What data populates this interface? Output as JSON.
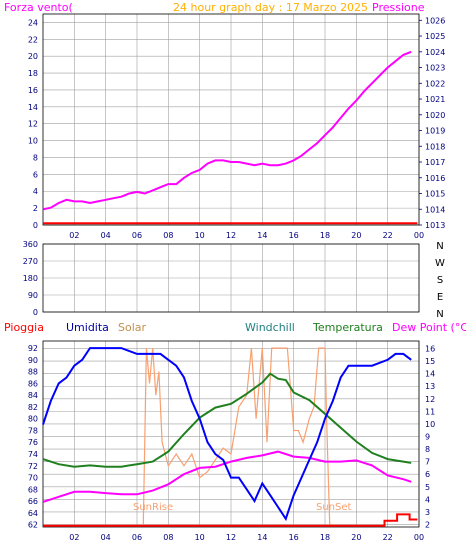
{
  "chart_data": [
    {
      "type": "line",
      "title": "24 hour graph day : 17 Marzo 2025",
      "left_axis_label": "Forza vento(",
      "right_axis_label": "Pressione",
      "x_ticks": [
        "02",
        "04",
        "06",
        "08",
        "10",
        "12",
        "14",
        "16",
        "18",
        "20",
        "22",
        "00"
      ],
      "y_left_ticks": [
        0,
        2,
        4,
        6,
        8,
        10,
        12,
        14,
        16,
        18,
        20,
        22,
        24
      ],
      "y_right_ticks": [
        1013,
        1014,
        1015,
        1016,
        1017,
        1018,
        1019,
        1020,
        1021,
        1022,
        1023,
        1024,
        1025,
        1026
      ],
      "y_left_range": [
        0,
        25
      ],
      "y_right_range": [
        1013,
        1026.4
      ],
      "grid": true,
      "colors": {
        "wind": "#ff0000",
        "pressure": "#ff00ff",
        "title": "#ffb000",
        "grid": "#a0a0a0",
        "tick": "#000080"
      },
      "series": [
        {
          "name": "Pressione",
          "axis": "right",
          "x": [
            0,
            0.5,
            1,
            1.5,
            2,
            2.5,
            3,
            3.5,
            4,
            4.5,
            5,
            5.5,
            6,
            6.5,
            7,
            7.5,
            8,
            8.5,
            9,
            9.5,
            10,
            10.5,
            11,
            11.5,
            12,
            12.5,
            13,
            13.5,
            14,
            14.5,
            15,
            15.5,
            16,
            16.5,
            17,
            17.5,
            18,
            18.5,
            19,
            19.5,
            20,
            20.5,
            21,
            21.5,
            22,
            22.5,
            23,
            23.5
          ],
          "y": [
            1014.0,
            1014.1,
            1014.4,
            1014.6,
            1014.5,
            1014.5,
            1014.4,
            1014.5,
            1014.6,
            1014.7,
            1014.8,
            1015.0,
            1015.1,
            1015.0,
            1015.2,
            1015.4,
            1015.6,
            1015.6,
            1016.0,
            1016.3,
            1016.5,
            1016.9,
            1017.1,
            1017.1,
            1017.0,
            1017.0,
            1016.9,
            1016.8,
            1016.9,
            1016.8,
            1016.8,
            1016.9,
            1017.1,
            1017.4,
            1017.8,
            1018.2,
            1018.7,
            1019.2,
            1019.8,
            1020.4,
            1020.9,
            1021.5,
            1022.0,
            1022.5,
            1023.0,
            1023.4,
            1023.8,
            1024.0
          ]
        },
        {
          "name": "Forza vento",
          "axis": "left",
          "x": [
            0,
            23.9
          ],
          "y": [
            0.2,
            0.2
          ]
        }
      ]
    },
    {
      "type": "scatter",
      "left_ticks": [
        "360",
        "270",
        "180",
        "90",
        "0"
      ],
      "right_labels": [
        "N",
        "W",
        "S",
        "E",
        "N"
      ],
      "grid": true,
      "series": []
    },
    {
      "type": "line",
      "labels": {
        "rain": "Pioggia",
        "humidity": "Umidita",
        "solar": "Solar",
        "windchill": "Windchill",
        "temperature": "Temperatura",
        "dewpoint": "Dew Point (°C)"
      },
      "colors": {
        "rain": "#ff0000",
        "humidity": "#0000ff",
        "solar": "#f8a070",
        "windchill": "#2060b0",
        "temperature": "#208020",
        "dewpoint": "#ff00ff"
      },
      "x_ticks": [
        "02",
        "04",
        "06",
        "08",
        "10",
        "12",
        "14",
        "16",
        "18",
        "20",
        "22",
        "00"
      ],
      "y_left_ticks": [
        62,
        64,
        66,
        68,
        70,
        72,
        74,
        76,
        78,
        80,
        82,
        84,
        86,
        88,
        90,
        92
      ],
      "y_right_ticks": [
        2,
        3,
        4,
        5,
        6,
        7,
        8,
        9,
        10,
        11,
        12,
        13,
        14,
        15,
        16
      ],
      "y_left_range": [
        61.6,
        93.2
      ],
      "y_right_range": [
        1.8,
        16.6
      ],
      "annotations": [
        "SunRise",
        "SunSet"
      ],
      "grid": true,
      "series": [
        {
          "name": "Umidita",
          "axis": "left",
          "x": [
            0,
            0.5,
            1,
            1.5,
            2,
            2.5,
            3,
            4,
            5,
            6,
            6.5,
            7,
            7.5,
            8,
            8.5,
            9,
            9.5,
            10,
            10.5,
            11,
            11.5,
            12,
            12.5,
            13,
            13.5,
            14,
            14.5,
            15,
            15.5,
            16,
            16.5,
            17,
            17.5,
            18,
            18.5,
            19,
            19.5,
            20,
            21,
            22,
            22.5,
            23,
            23.5
          ],
          "y": [
            79,
            83,
            86,
            87,
            89,
            90,
            92,
            92,
            92,
            91,
            91,
            91,
            91,
            90,
            89,
            87,
            83,
            80,
            76,
            74,
            73,
            70,
            70,
            68,
            66,
            69,
            67,
            65,
            63,
            67,
            70,
            73,
            76,
            80,
            83,
            87,
            89,
            89,
            89,
            90,
            91,
            91,
            90
          ]
        },
        {
          "name": "Temperatura",
          "axis": "right",
          "x": [
            0,
            1,
            2,
            3,
            4,
            5,
            6,
            7,
            8,
            9,
            10,
            11,
            12,
            13,
            14,
            14.5,
            15,
            15.5,
            16,
            17,
            18,
            19,
            20,
            21,
            22,
            23,
            23.5
          ],
          "y": [
            7.2,
            6.8,
            6.6,
            6.7,
            6.6,
            6.6,
            6.8,
            7.0,
            7.8,
            9.2,
            10.5,
            11.3,
            11.6,
            12.4,
            13.3,
            14.0,
            13.6,
            13.5,
            12.5,
            11.9,
            10.8,
            9.7,
            8.6,
            7.7,
            7.2,
            7.0,
            6.9
          ]
        },
        {
          "name": "Dew Point",
          "axis": "right",
          "x": [
            0,
            1,
            2,
            3,
            4,
            5,
            6,
            7,
            8,
            9,
            10,
            11,
            12,
            13,
            14,
            15,
            16,
            17,
            18,
            19,
            20,
            21,
            22,
            23,
            23.5
          ],
          "y": [
            3.8,
            4.2,
            4.6,
            4.6,
            4.5,
            4.4,
            4.4,
            4.7,
            5.2,
            6.0,
            6.5,
            6.6,
            7.0,
            7.3,
            7.5,
            7.8,
            7.4,
            7.3,
            7.0,
            7.0,
            7.1,
            6.7,
            5.9,
            5.6,
            5.4
          ]
        },
        {
          "name": "Pioggia",
          "axis": "right",
          "x": [
            0,
            21.8,
            21.8,
            22.6,
            22.6,
            23.4,
            23.4,
            23.9
          ],
          "y": [
            1.9,
            1.9,
            2.3,
            2.3,
            2.8,
            2.8,
            2.4,
            2.4
          ]
        },
        {
          "name": "Solar",
          "axis": "left",
          "x": [
            6.4,
            6.6,
            6.8,
            7.0,
            7.2,
            7.4,
            7.6,
            8.0,
            8.5,
            9.0,
            9.5,
            10.0,
            10.5,
            11.0,
            11.5,
            12.0,
            12.5,
            13.0,
            13.3,
            13.6,
            14.0,
            14.3,
            14.6,
            15.0,
            15.3,
            15.6,
            16.0,
            16.3,
            16.6,
            17.0,
            17.3,
            17.6,
            18.0,
            18.1,
            18.3,
            18.5
          ],
          "y": [
            62,
            92,
            86,
            92,
            84,
            88,
            76,
            72,
            74,
            72,
            74,
            70,
            71,
            73,
            75,
            74,
            82,
            84,
            92,
            80,
            92,
            76,
            92,
            92,
            92,
            92,
            78,
            78,
            76,
            80,
            82,
            92,
            92,
            80,
            62,
            62
          ]
        }
      ]
    }
  ]
}
